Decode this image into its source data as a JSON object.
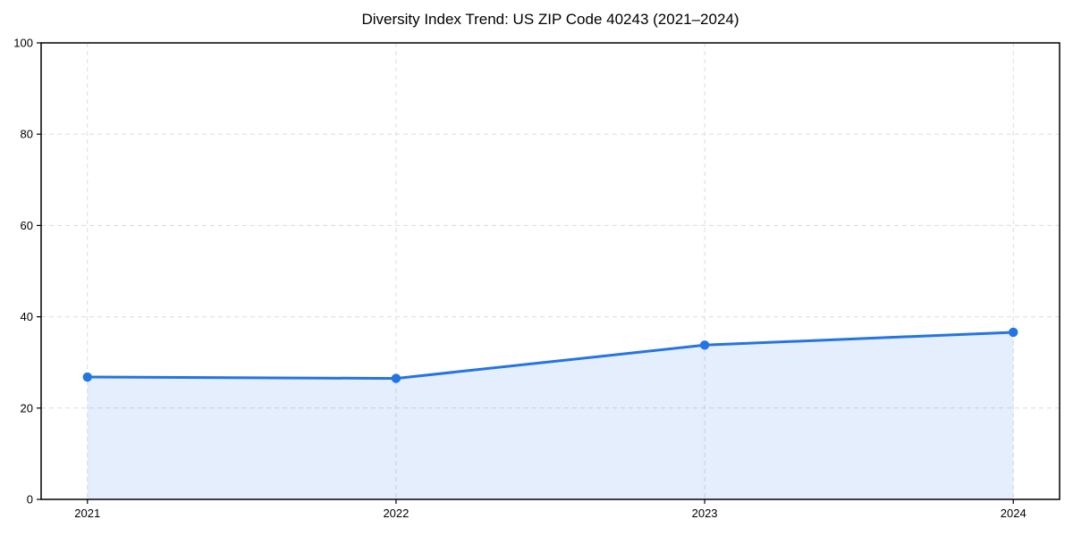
{
  "chart_data": {
    "type": "area",
    "title": "Diversity Index Trend: US ZIP Code 40243 (2021–2024)",
    "x": [
      2021,
      2022,
      2023,
      2024
    ],
    "values": [
      26.8,
      26.5,
      33.8,
      36.6
    ],
    "xticks": [
      2021,
      2022,
      2023,
      2024
    ],
    "xtick_labels": [
      "2021",
      "2022",
      "2023",
      "2024"
    ],
    "yticks": [
      0,
      20,
      40,
      60,
      80,
      100
    ],
    "xlim": [
      2020.85,
      2024.15
    ],
    "ylim": [
      0,
      100
    ],
    "xlabel": "",
    "ylabel": "",
    "grid": true,
    "grid_style": "dashed",
    "legend": false,
    "marker": "circle",
    "fill_opacity": 0.12,
    "colors": {
      "line": "#2474e4",
      "marker": "#2474e4",
      "fill": "#2474e4",
      "grid": "#dcdcdc",
      "axis": "#000000",
      "text": "#000000",
      "background": "#ffffff"
    }
  }
}
